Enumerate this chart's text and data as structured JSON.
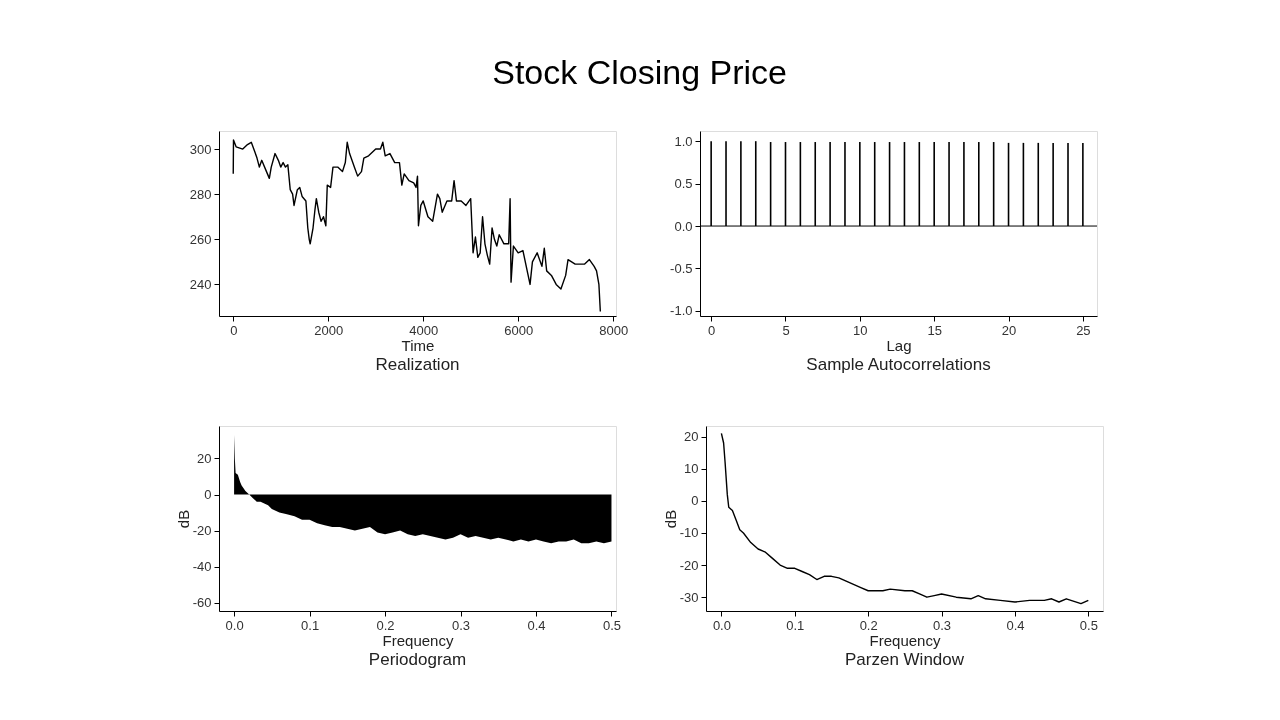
{
  "chart_data": [
    {
      "type": "line",
      "title": "Stock Closing Price",
      "xlabel": "Time",
      "annotations": [
        "Realization"
      ],
      "color": "#000000",
      "grid": false,
      "legend": false,
      "line_style": "solid",
      "x": [
        0,
        5,
        60,
        200,
        300,
        380,
        450,
        500,
        550,
        600,
        700,
        760,
        800,
        880,
        950,
        1000,
        1050,
        1100,
        1150,
        1200,
        1250,
        1280,
        1350,
        1400,
        1450,
        1530,
        1570,
        1600,
        1620,
        1680,
        1720,
        1750,
        1800,
        1850,
        1900,
        1950,
        1980,
        2050,
        2100,
        2200,
        2300,
        2360,
        2400,
        2450,
        2500,
        2550,
        2620,
        2700,
        2750,
        2850,
        3000,
        3100,
        3150,
        3200,
        3300,
        3400,
        3500,
        3550,
        3600,
        3700,
        3800,
        3850,
        3880,
        3900,
        3950,
        4000,
        4100,
        4200,
        4300,
        4350,
        4400,
        4500,
        4600,
        4650,
        4700,
        4800,
        4900,
        5000,
        5050,
        5100,
        5150,
        5200,
        5250,
        5300,
        5350,
        5400,
        5450,
        5500,
        5550,
        5600,
        5700,
        5800,
        5830,
        5850,
        5900,
        6000,
        6100,
        6200,
        6250,
        6300,
        6400,
        6500,
        6550,
        6600,
        6700,
        6800,
        6900,
        7000,
        7050,
        7200,
        7400,
        7500,
        7600,
        7650,
        7700,
        7730
      ],
      "values": [
        289,
        304,
        301,
        300,
        302,
        303,
        299,
        296,
        292,
        295,
        290,
        287,
        292,
        298,
        295,
        292,
        294,
        292,
        293,
        282,
        280,
        275,
        282,
        283,
        279,
        277,
        265,
        260,
        258,
        265,
        273,
        278,
        272,
        268,
        270,
        266,
        284,
        283,
        292,
        292,
        290,
        294,
        303,
        298,
        295,
        292,
        288,
        290,
        296,
        297,
        300,
        300,
        303,
        297,
        298,
        294,
        294,
        284,
        289,
        286,
        285,
        283,
        288,
        266,
        275,
        277,
        270,
        268,
        280,
        278,
        272,
        277,
        277,
        286,
        277,
        277,
        275,
        278,
        254,
        261,
        252,
        254,
        270,
        258,
        253,
        249,
        265,
        260,
        257,
        262,
        258,
        258,
        278,
        241,
        257,
        254,
        255,
        245,
        240,
        250,
        254,
        248,
        256,
        246,
        244,
        240,
        238,
        244,
        251,
        249,
        249,
        251,
        248,
        246,
        240,
        228
      ],
      "xlim": [
        -300,
        8060
      ],
      "ylim": [
        226,
        308
      ],
      "xticks": [
        0,
        2000,
        4000,
        6000,
        8000
      ],
      "yticks": [
        240,
        260,
        280,
        300
      ]
    },
    {
      "type": "bar",
      "xlabel": "Lag",
      "annotations": [
        "Sample Autocorrelations"
      ],
      "color": "#000000",
      "grid": false,
      "legend": false,
      "x": [
        0,
        1,
        2,
        3,
        4,
        5,
        6,
        7,
        8,
        9,
        10,
        11,
        12,
        13,
        14,
        15,
        16,
        17,
        18,
        19,
        20,
        21,
        22,
        23,
        24,
        25
      ],
      "values": [
        1.0,
        1.0,
        1.0,
        1.0,
        0.99,
        0.99,
        0.99,
        0.99,
        0.99,
        0.99,
        0.99,
        0.99,
        0.99,
        0.99,
        0.99,
        0.99,
        0.99,
        0.99,
        0.99,
        0.99,
        0.98,
        0.98,
        0.98,
        0.98,
        0.98,
        0.98
      ],
      "xlim": [
        -0.75,
        25.95
      ],
      "ylim": [
        -1.06,
        1.12
      ],
      "xticks": [
        0,
        5,
        10,
        15,
        20,
        25
      ],
      "yticks": [
        {
          "value": -1,
          "label": "-1.0"
        },
        {
          "value": -0.5,
          "label": "-0.5"
        },
        {
          "value": 0,
          "label": "0.0"
        },
        {
          "value": 0.5,
          "label": "0.5"
        },
        {
          "value": 1,
          "label": "1.0"
        }
      ],
      "ref_lines": [
        {
          "axis": "y",
          "value": 0,
          "label": null,
          "color": "#000000"
        }
      ]
    },
    {
      "type": "area",
      "xlabel": "Frequency",
      "ylabel": "dB",
      "annotations": [
        "Periodogram"
      ],
      "color": "#000000",
      "grid": false,
      "legend": false,
      "x": [
        0,
        0.001,
        0.002,
        0.005,
        0.008,
        0.01,
        0.015,
        0.02,
        0.025,
        0.03,
        0.035,
        0.04,
        0.045,
        0.05,
        0.06,
        0.07,
        0.08,
        0.09,
        0.1,
        0.11,
        0.12,
        0.13,
        0.14,
        0.15,
        0.16,
        0.17,
        0.18,
        0.19,
        0.2,
        0.21,
        0.22,
        0.23,
        0.24,
        0.25,
        0.26,
        0.27,
        0.28,
        0.29,
        0.3,
        0.31,
        0.32,
        0.33,
        0.34,
        0.35,
        0.36,
        0.37,
        0.38,
        0.39,
        0.4,
        0.41,
        0.42,
        0.43,
        0.44,
        0.45,
        0.46,
        0.47,
        0.48,
        0.49,
        0.5
      ],
      "values": [
        33,
        20,
        12,
        11,
        7,
        5,
        2,
        0,
        -2,
        -4,
        -4,
        -5,
        -6,
        -8,
        -10,
        -11,
        -12,
        -14,
        -14,
        -16,
        -17,
        -18,
        -18,
        -19,
        -20,
        -19,
        -18,
        -21,
        -22,
        -21,
        -20,
        -22,
        -23,
        -22,
        -23,
        -24,
        -25,
        -24,
        -22,
        -24,
        -23,
        -24,
        -25,
        -24,
        -25,
        -26,
        -25,
        -26,
        -25,
        -26,
        -27,
        -26,
        -26,
        -25,
        -27,
        -27,
        -26,
        -27,
        -26
      ],
      "xlim": [
        -0.02,
        0.506
      ],
      "ylim": [
        -64.6,
        38
      ],
      "xticks": [
        {
          "value": 0,
          "label": "0.0"
        },
        0.1,
        0.2,
        0.3,
        0.4,
        0.5
      ],
      "yticks": [
        -60,
        -40,
        -20,
        0,
        20
      ]
    },
    {
      "type": "line",
      "xlabel": "Frequency",
      "ylabel": "dB",
      "annotations": [
        "Parzen Window"
      ],
      "color": "#000000",
      "grid": false,
      "legend": false,
      "line_style": "solid",
      "x": [
        0,
        0.003,
        0.005,
        0.008,
        0.01,
        0.015,
        0.02,
        0.025,
        0.03,
        0.04,
        0.05,
        0.06,
        0.07,
        0.08,
        0.09,
        0.1,
        0.11,
        0.12,
        0.13,
        0.14,
        0.15,
        0.16,
        0.17,
        0.18,
        0.19,
        0.2,
        0.22,
        0.23,
        0.25,
        0.26,
        0.27,
        0.28,
        0.29,
        0.3,
        0.32,
        0.34,
        0.35,
        0.36,
        0.38,
        0.4,
        0.42,
        0.44,
        0.45,
        0.46,
        0.47,
        0.49,
        0.5
      ],
      "values": [
        21,
        18,
        12,
        2,
        -2,
        -3,
        -6,
        -9,
        -10,
        -13,
        -15,
        -16,
        -18,
        -20,
        -21,
        -21,
        -22,
        -23,
        -24.5,
        -23.5,
        -23.5,
        -24,
        -25,
        -26,
        -27,
        -28,
        -28,
        -27.5,
        -28,
        -28,
        -29,
        -30,
        -29.5,
        -29,
        -30,
        -30.5,
        -29.5,
        -30.5,
        -31,
        -31.5,
        -31,
        -31,
        -30.5,
        -31.5,
        -30.5,
        -32,
        -31
      ],
      "xlim": [
        -0.021,
        0.52
      ],
      "ylim": [
        -34.3,
        23.3
      ],
      "xticks": [
        {
          "value": 0,
          "label": "0.0"
        },
        0.1,
        0.2,
        0.3,
        0.4,
        0.5
      ],
      "yticks": [
        -30,
        -20,
        -10,
        0,
        10,
        20
      ]
    }
  ]
}
